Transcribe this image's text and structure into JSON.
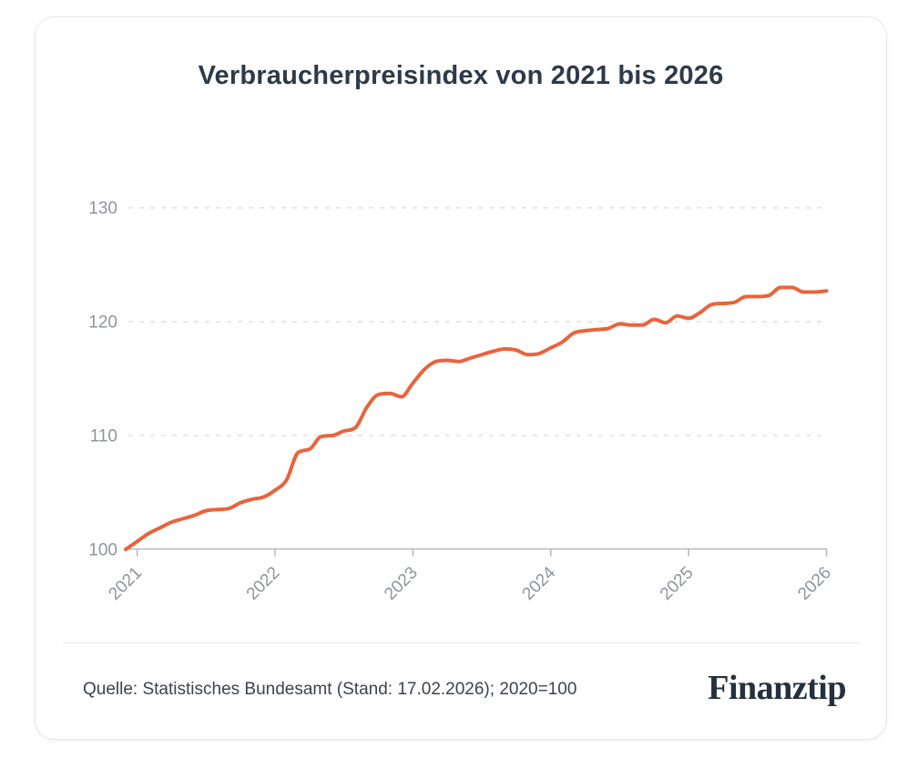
{
  "header": {
    "title": "Verbraucherpreisindex von 2021 bis 2026"
  },
  "footer": {
    "source_text": "Quelle: Statistisches Bundesamt (Stand: 17.02.2026); 2020=100",
    "brand": "Finanztip"
  },
  "colors": {
    "line": "#E8643C",
    "title_text": "#2D3A49",
    "axis_text": "#8F949C",
    "axis_line": "#B4B7BD",
    "gridline": "#D9DBDE",
    "footer_text": "#3D434C",
    "brand_text": "#24303E",
    "card_border": "#E5E7EA",
    "card_bg": "#FFFFFF"
  },
  "chart_data": {
    "type": "line",
    "title": "Verbraucherpreisindex von 2021 bis 2026",
    "series_name": "Verbraucherpreisindex (2020=100)",
    "x": [
      "2020-12",
      "2021-01",
      "2021-02",
      "2021-03",
      "2021-04",
      "2021-05",
      "2021-06",
      "2021-07",
      "2021-08",
      "2021-09",
      "2021-10",
      "2021-11",
      "2021-12",
      "2022-01",
      "2022-02",
      "2022-03",
      "2022-04",
      "2022-05",
      "2022-06",
      "2022-07",
      "2022-08",
      "2022-09",
      "2022-10",
      "2022-11",
      "2022-12",
      "2023-01",
      "2023-02",
      "2023-03",
      "2023-04",
      "2023-05",
      "2023-06",
      "2023-07",
      "2023-08",
      "2023-09",
      "2023-10",
      "2023-11",
      "2023-12",
      "2024-01",
      "2024-02",
      "2024-03",
      "2024-04",
      "2024-05",
      "2024-06",
      "2024-07",
      "2024-08",
      "2024-09",
      "2024-10",
      "2024-11",
      "2024-12",
      "2025-01",
      "2025-02",
      "2025-03",
      "2025-04",
      "2025-05",
      "2025-06",
      "2025-07",
      "2025-08",
      "2025-09",
      "2025-10",
      "2025-11",
      "2025-12",
      "2026-01"
    ],
    "values": [
      100.0,
      100.7,
      101.4,
      101.9,
      102.4,
      102.7,
      103.0,
      103.4,
      103.5,
      103.6,
      104.1,
      104.4,
      104.6,
      105.2,
      106.1,
      108.5,
      108.8,
      109.9,
      110.0,
      110.4,
      110.7,
      112.5,
      113.6,
      113.7,
      113.4,
      114.6,
      115.8,
      116.5,
      116.6,
      116.5,
      116.8,
      117.1,
      117.4,
      117.6,
      117.5,
      117.1,
      117.2,
      117.7,
      118.2,
      119.0,
      119.2,
      119.3,
      119.4,
      119.8,
      119.7,
      119.7,
      120.2,
      119.9,
      120.5,
      120.3,
      120.8,
      121.5,
      121.6,
      121.7,
      122.2,
      122.2,
      122.3,
      123.0,
      123.0,
      122.6,
      122.6,
      122.7
    ],
    "x_tick_labels": [
      "2021",
      "2022",
      "2023",
      "2024",
      "2025",
      "2026"
    ],
    "y_ticks": [
      100,
      110,
      120,
      130
    ],
    "ylim": [
      100,
      133
    ],
    "xlabel": "",
    "ylabel": "",
    "legend": "none",
    "grid": "horizontal-dashed",
    "line_color": "#E8643C"
  }
}
